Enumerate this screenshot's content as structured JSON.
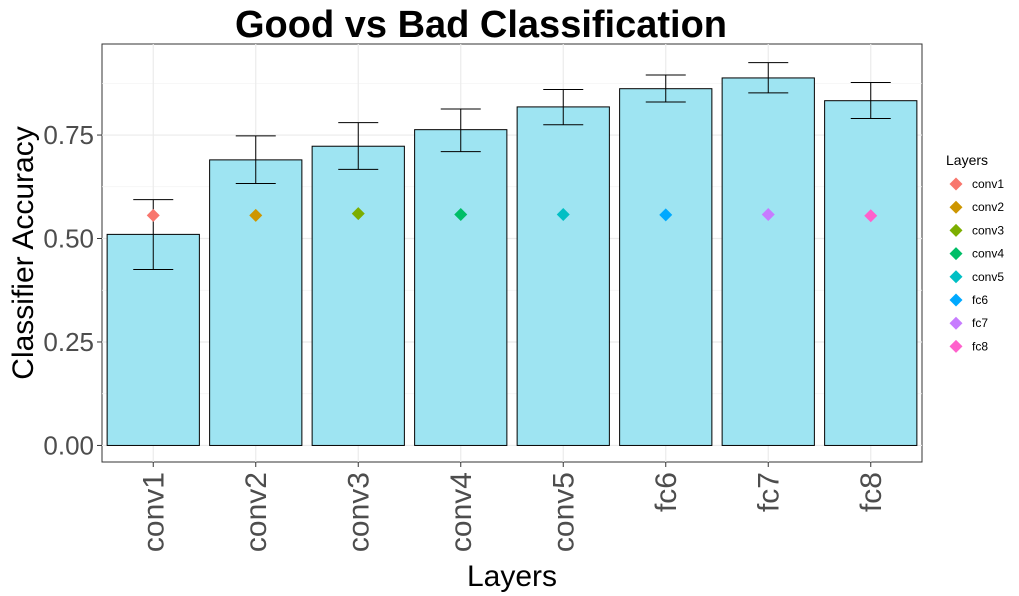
{
  "chart_data": {
    "type": "bar",
    "title": "Good vs Bad Classification",
    "xlabel": "Layers",
    "ylabel": "Classifier Accuracy",
    "categories": [
      "conv1",
      "conv2",
      "conv3",
      "conv4",
      "conv5",
      "fc6",
      "fc7",
      "fc8"
    ],
    "values": [
      0.51,
      0.69,
      0.723,
      0.763,
      0.818,
      0.862,
      0.888,
      0.833
    ],
    "error_low": [
      0.425,
      0.633,
      0.667,
      0.71,
      0.775,
      0.83,
      0.852,
      0.79
    ],
    "error_high": [
      0.594,
      0.748,
      0.78,
      0.813,
      0.86,
      0.895,
      0.925,
      0.877
    ],
    "points": [
      0.556,
      0.556,
      0.56,
      0.558,
      0.558,
      0.557,
      0.558,
      0.555
    ],
    "point_colors": [
      "#F8766D",
      "#CD9600",
      "#7CAE00",
      "#00BE67",
      "#00BFC4",
      "#00A9FF",
      "#C77CFF",
      "#FF61CC"
    ],
    "bar_color": "#9EE4F2",
    "ylim": [
      -0.04,
      0.97
    ],
    "yticks": [
      0,
      0.25,
      0.5,
      0.75
    ],
    "ytick_labels": [
      "0.00",
      "0.25",
      "0.50",
      "0.75"
    ],
    "grid": true,
    "legend": {
      "title": "Layers",
      "position": "right",
      "entries": [
        "conv1",
        "conv2",
        "conv3",
        "conv4",
        "conv5",
        "fc6",
        "fc7",
        "fc8"
      ]
    }
  }
}
